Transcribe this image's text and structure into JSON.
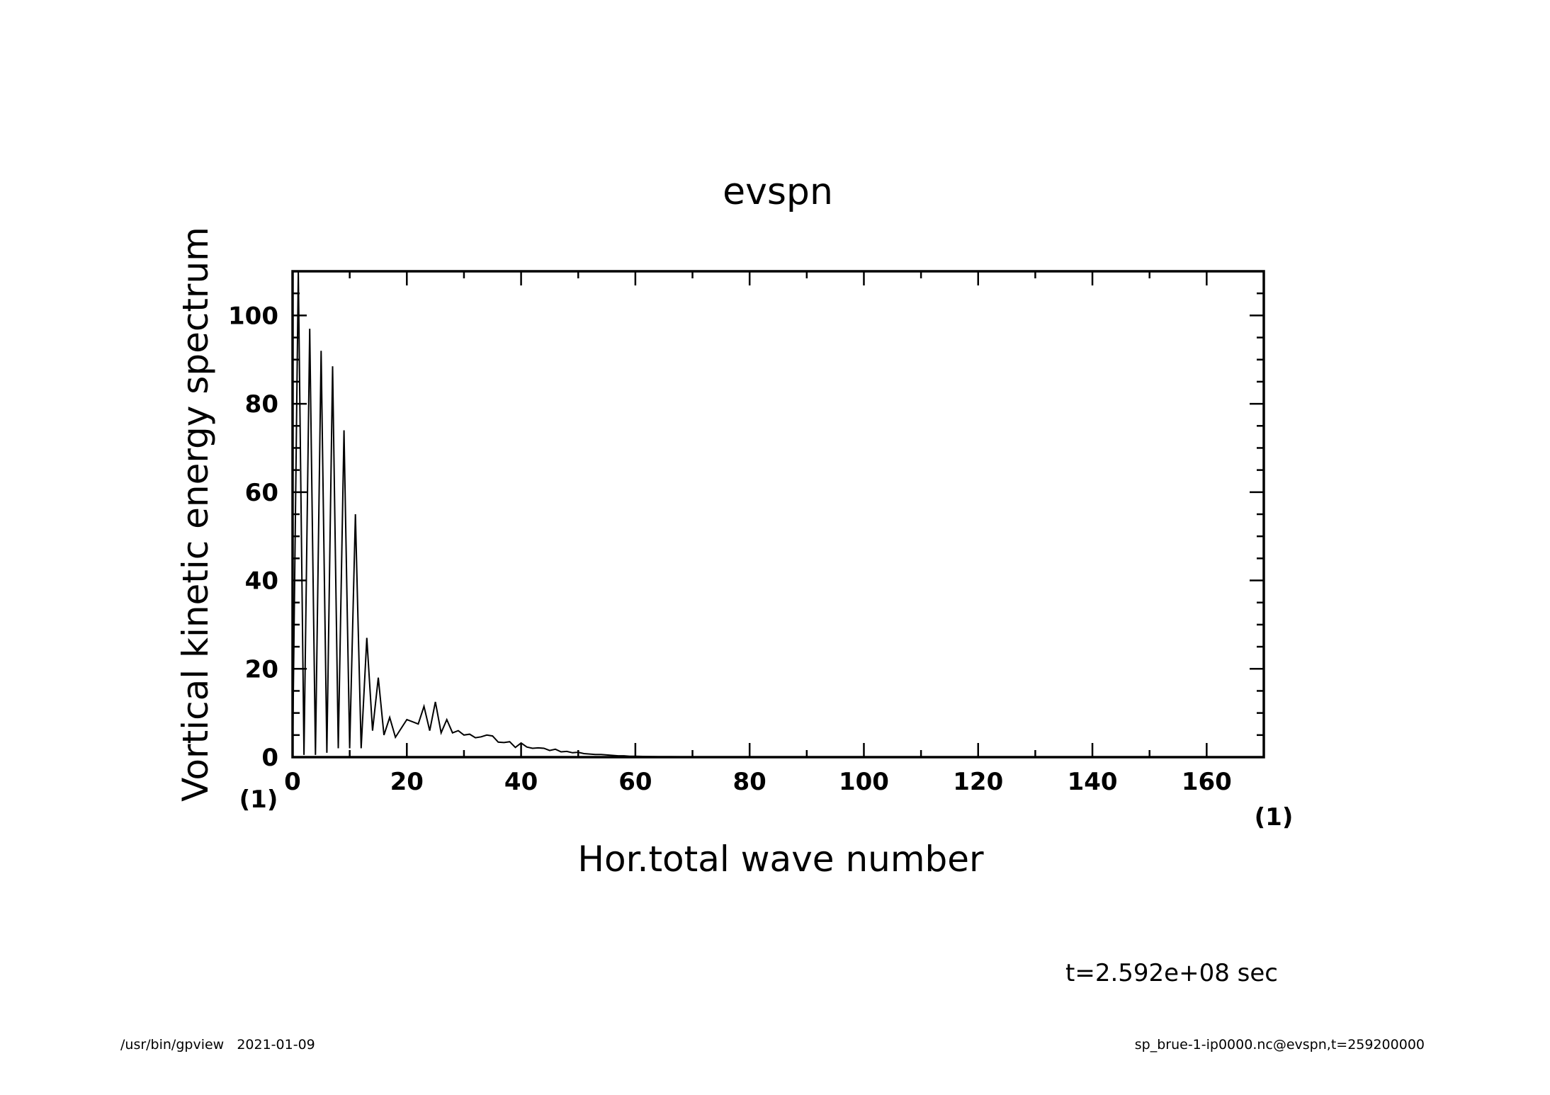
{
  "chart_data": {
    "type": "line",
    "title": "evspn",
    "xlabel": "Hor.total wave number",
    "ylabel": "Vortical kinetic energy spectrum",
    "x_unit": "(1)",
    "y_unit": "(1)",
    "xlim": [
      0,
      170
    ],
    "ylim": [
      0,
      110
    ],
    "x_ticks": [
      "0",
      "20",
      "40",
      "60",
      "80",
      "100",
      "120",
      "140",
      "160"
    ],
    "y_ticks": [
      "0",
      "20",
      "40",
      "60",
      "80",
      "100"
    ],
    "grid": false,
    "series": [
      {
        "x": [
          0,
          1,
          2,
          3,
          4,
          5,
          6,
          7,
          8,
          9,
          10,
          11,
          12,
          13,
          14,
          15,
          16,
          17,
          18,
          19,
          20,
          21,
          22,
          23,
          24,
          25,
          26,
          27,
          28,
          29,
          30,
          31,
          32,
          33,
          34,
          35,
          36,
          37,
          38,
          39,
          40,
          41,
          42,
          43,
          44,
          45,
          46,
          47,
          48,
          49,
          50,
          51,
          52,
          53,
          54,
          55,
          56,
          57,
          58,
          59,
          60,
          62,
          64,
          66,
          68,
          70,
          75,
          80,
          90,
          100,
          120,
          140,
          170
        ],
        "y": [
          0,
          110,
          0.5,
          97,
          0.5,
          92,
          1,
          88.5,
          2,
          74,
          2,
          55,
          2,
          27,
          6,
          18,
          5,
          9,
          4.5,
          6.5,
          8.5,
          8,
          7.5,
          11.5,
          6,
          12.5,
          5.5,
          8.5,
          5.5,
          6,
          5,
          5.2,
          4.4,
          4.6,
          5,
          4.8,
          3.4,
          3.3,
          3.5,
          2.2,
          3.2,
          2.3,
          2,
          2.1,
          2,
          1.5,
          1.8,
          1.2,
          1.3,
          1,
          1.1,
          0.8,
          0.7,
          0.6,
          0.6,
          0.5,
          0.4,
          0.3,
          0.3,
          0.2,
          0.2,
          0.15,
          0.1,
          0.1,
          0.08,
          0.06,
          0.05,
          0.03,
          0.02,
          0.01,
          0,
          0,
          0
        ]
      }
    ]
  },
  "annotation": "t=2.592e+08 sec",
  "footer": {
    "left": "/usr/bin/gpview   2021-01-09",
    "right": "sp_brue-1-ip0000.nc@evspn,t=259200000"
  }
}
